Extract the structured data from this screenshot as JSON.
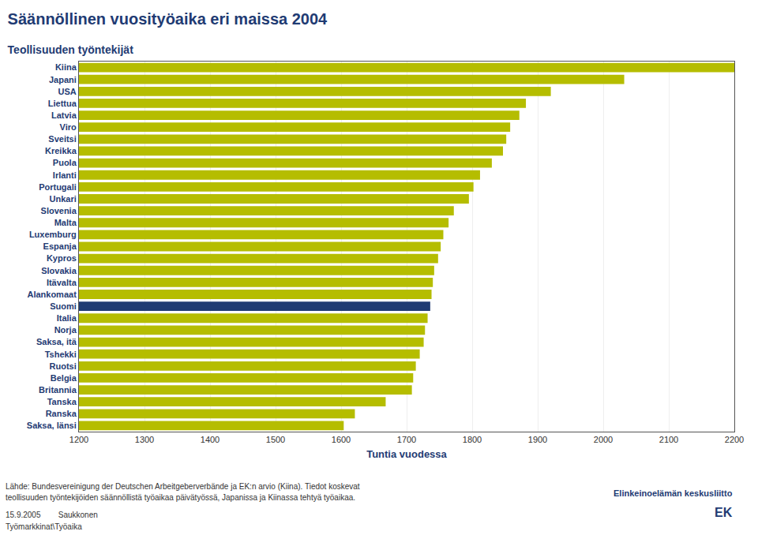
{
  "chart_data": {
    "type": "bar",
    "orientation": "horizontal",
    "title": "Säännöllinen vuosityöaika eri maissa 2004",
    "subtitle": "Teollisuuden työntekijät",
    "xlabel": "Tuntia vuodessa",
    "categories": [
      "Kiina",
      "Japani",
      "USA",
      "Liettua",
      "Latvia",
      "Viro",
      "Sveitsi",
      "Kreikka",
      "Puola",
      "Irlanti",
      "Portugali",
      "Unkari",
      "Slovenia",
      "Malta",
      "Luxemburg",
      "Espanja",
      "Kypros",
      "Slovakia",
      "Itävalta",
      "Alankomaat",
      "Suomi",
      "Italia",
      "Norja",
      "Saksa, itä",
      "Tshekki",
      "Ruotsi",
      "Belgia",
      "Britannia",
      "Tanska",
      "Ranska",
      "Saksa, länsi"
    ],
    "values": [
      2200,
      2032,
      1920,
      1882,
      1872,
      1858,
      1852,
      1847,
      1830,
      1812,
      1802,
      1795,
      1772,
      1764,
      1756,
      1752,
      1748,
      1742,
      1740,
      1738,
      1736,
      1732,
      1728,
      1726,
      1720,
      1714,
      1710,
      1708,
      1668,
      1621,
      1604
    ],
    "colors": [
      "#b5bd00",
      "#b5bd00",
      "#b5bd00",
      "#b5bd00",
      "#b5bd00",
      "#b5bd00",
      "#b5bd00",
      "#b5bd00",
      "#b5bd00",
      "#b5bd00",
      "#b5bd00",
      "#b5bd00",
      "#b5bd00",
      "#b5bd00",
      "#b5bd00",
      "#b5bd00",
      "#b5bd00",
      "#b5bd00",
      "#b5bd00",
      "#b5bd00",
      "#1f3b73",
      "#b5bd00",
      "#b5bd00",
      "#b5bd00",
      "#b5bd00",
      "#b5bd00",
      "#b5bd00",
      "#b5bd00",
      "#b5bd00",
      "#b5bd00",
      "#b5bd00"
    ],
    "xlim": [
      1200,
      2200
    ],
    "xticks": [
      1200,
      1300,
      1400,
      1500,
      1600,
      1700,
      1800,
      1900,
      2000,
      2100,
      2200
    ],
    "grid": true,
    "annotations": [
      "Lähde: Bundesvereinigung der Deutschen Arbeitgeberverbände ja EK:n arvio (Kiina). Tiedot koskevat",
      "teollisuuden työntekijöiden säännöllistä työaikaa päivätyössä, Japanissa ja Kiinassa tehtyä työaikaa.",
      "15.9.2005        Saukkonen",
      "Työmarkkinat\\Työaika",
      "Elinkeinoelämän keskusliitto",
      "EK"
    ]
  }
}
